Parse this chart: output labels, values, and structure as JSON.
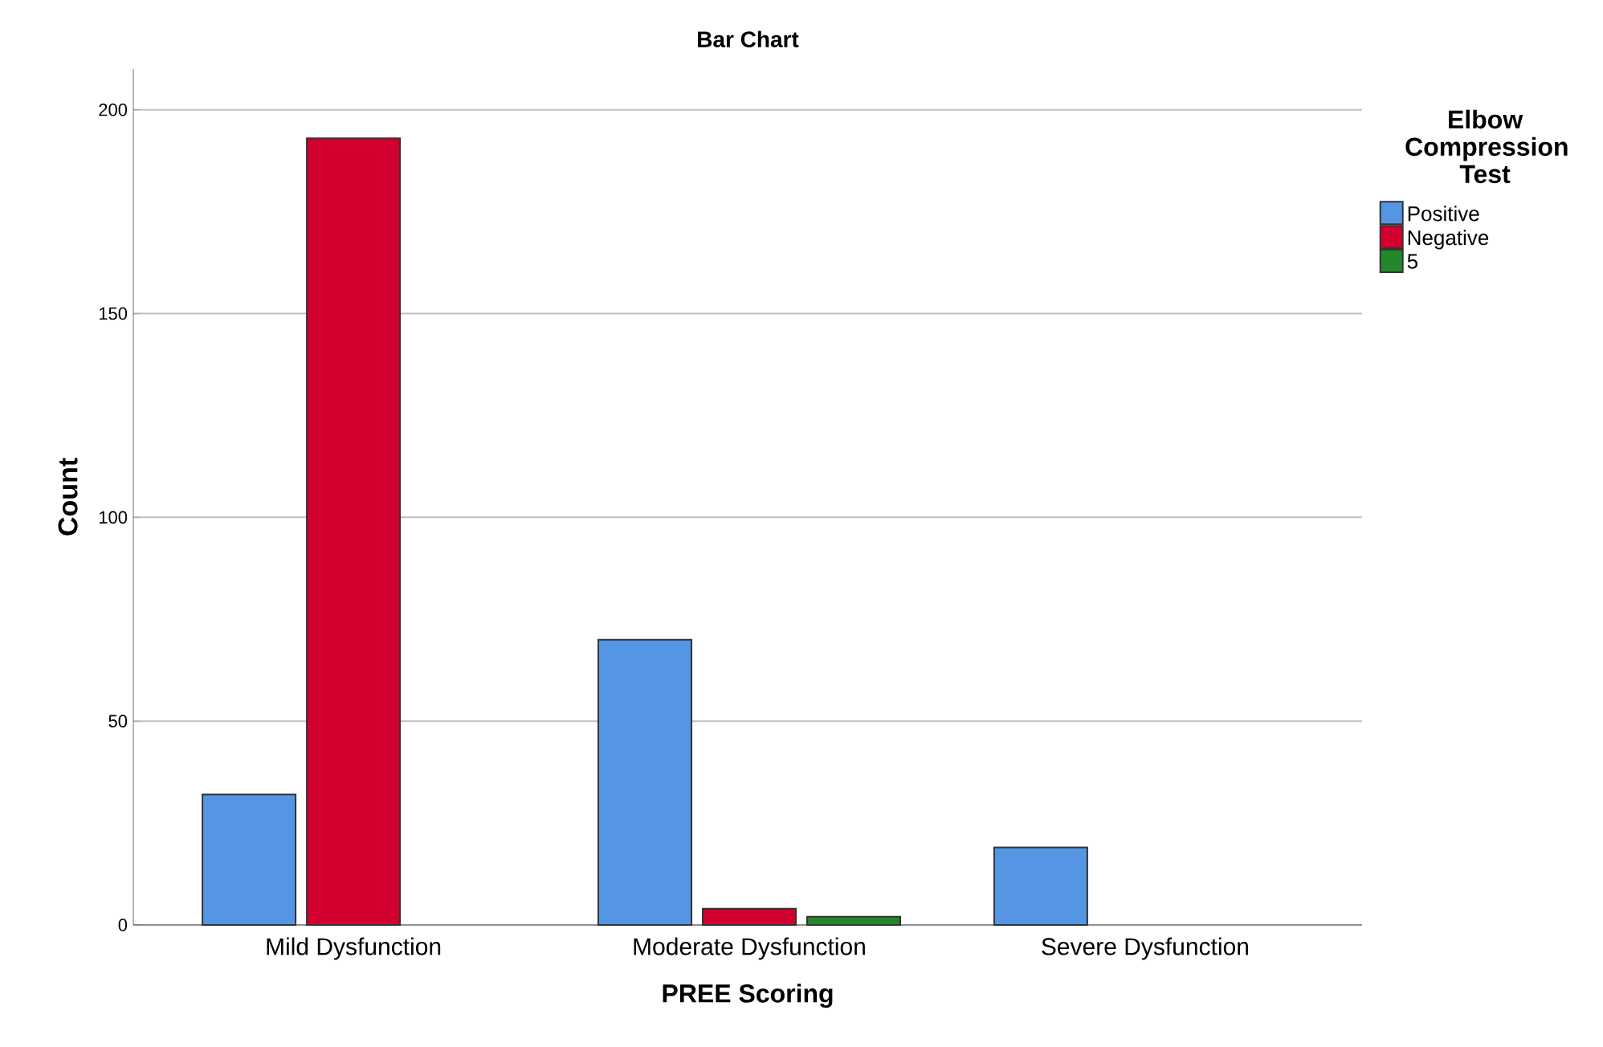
{
  "chart_data": {
    "type": "bar",
    "title": "Bar Chart",
    "xlabel": "PREE Scoring",
    "ylabel": "Count",
    "legend_title": "Elbow Compression Test",
    "categories": [
      "Mild Dysfunction",
      "Moderate Dysfunction",
      "Severe Dysfunction"
    ],
    "series": [
      {
        "name": "Positive",
        "color": "#5596e4",
        "values": [
          32,
          70,
          19
        ]
      },
      {
        "name": "Negative",
        "color": "#d2002e",
        "values": [
          193,
          4,
          null
        ]
      },
      {
        "name": "5",
        "color": "#24882a",
        "values": [
          null,
          2,
          null
        ]
      }
    ],
    "ylim": [
      0,
      210
    ],
    "yticks": [
      0,
      50,
      100,
      150,
      200
    ],
    "grid": "y",
    "legend": "top right"
  }
}
